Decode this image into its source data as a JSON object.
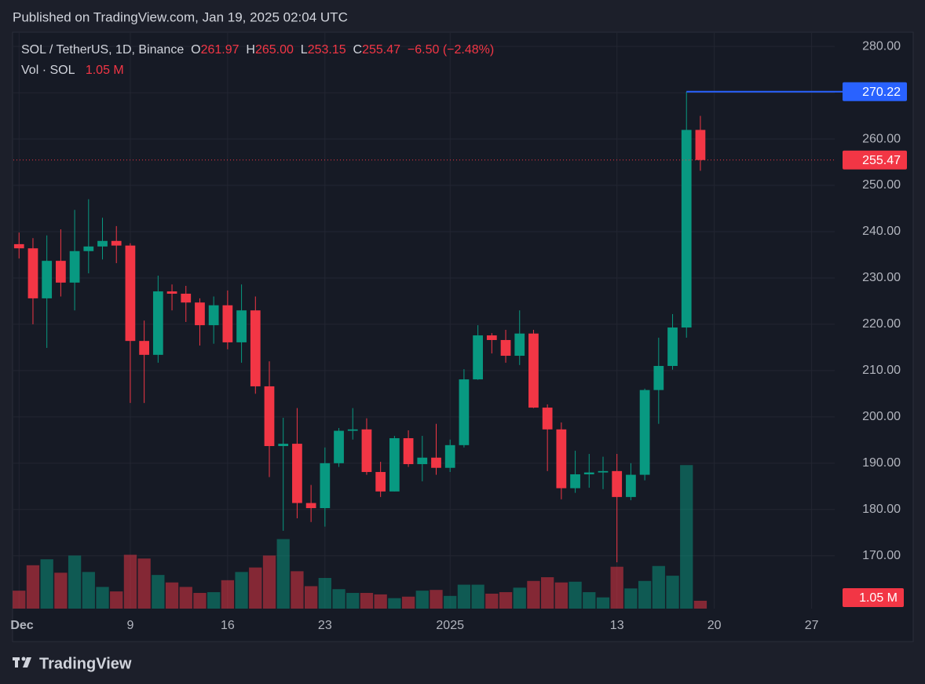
{
  "page": {
    "published": "Published on TradingView.com, Jan 19, 2025 02:04 UTC",
    "brand": "TradingView"
  },
  "chart_data": {
    "type": "candlestick",
    "legend": {
      "symbol": "SOL / TetherUS, 1D, Binance",
      "ohlc": [
        {
          "key": "O",
          "value": "261.97"
        },
        {
          "key": "H",
          "value": "265.00"
        },
        {
          "key": "L",
          "value": "253.15"
        },
        {
          "key": "C",
          "value": "255.47"
        }
      ],
      "change": "−6.50 (−2.48%)"
    },
    "up_color": "#089981",
    "down_color": "#f23645",
    "xlim": [
      -0.41,
      58.66
    ],
    "xticks": [
      {
        "value": 0,
        "label": "Dec"
      },
      {
        "value": 8,
        "label": "9"
      },
      {
        "value": 15,
        "label": "16"
      },
      {
        "value": 22,
        "label": "23"
      },
      {
        "value": 31,
        "label": "2025"
      },
      {
        "value": 43,
        "label": "13"
      },
      {
        "value": 50,
        "label": "20"
      },
      {
        "value": 57,
        "label": "27"
      }
    ],
    "ylim": [
      158.6,
      282.9
    ],
    "yticks": [
      {
        "value": 170,
        "label": "170.00"
      },
      {
        "value": 180,
        "label": "180.00"
      },
      {
        "value": 190,
        "label": "190.00"
      },
      {
        "value": 200,
        "label": "200.00"
      },
      {
        "value": 210,
        "label": "210.00"
      },
      {
        "value": 220,
        "label": "220.00"
      },
      {
        "value": 230,
        "label": "230.00"
      },
      {
        "value": 240,
        "label": "240.00"
      },
      {
        "value": 250,
        "label": "250.00"
      },
      {
        "value": 260,
        "label": "260.00"
      },
      {
        "value": 270,
        "label": "270.00"
      },
      {
        "value": 280,
        "label": "280.00"
      }
    ],
    "grid": true,
    "open": [
      237.3,
      236.4,
      225.6,
      233.7,
      229.0,
      235.8,
      236.8,
      238.0,
      237.0,
      216.4,
      213.4,
      227.1,
      226.6,
      224.7,
      219.8,
      224.1,
      216.1,
      223.0,
      206.6,
      193.7,
      194.2,
      181.4,
      180.3,
      190.0,
      197.0,
      197.3,
      188.1,
      183.9,
      195.4,
      189.8,
      191.2,
      189.0,
      193.9,
      208.1,
      217.6,
      216.6,
      213.2,
      218.0,
      202.0,
      197.3,
      184.6,
      187.6,
      188.0,
      188.3,
      182.7,
      187.5,
      205.8,
      211.0,
      219.3,
      261.97
    ],
    "high": [
      239.8,
      238.6,
      239.2,
      240.5,
      244.7,
      247.0,
      243.0,
      241.2,
      237.5,
      220.8,
      230.5,
      228.6,
      228.3,
      225.6,
      226.0,
      227.3,
      228.6,
      226.0,
      212.0,
      199.8,
      201.9,
      185.3,
      193.4,
      197.6,
      201.9,
      199.7,
      190.3,
      195.9,
      197.1,
      195.9,
      198.5,
      195.1,
      210.3,
      219.8,
      218.1,
      218.8,
      223.0,
      218.8,
      202.7,
      198.8,
      192.7,
      192.0,
      191.4,
      192.0,
      190.0,
      206.1,
      217.1,
      222.2,
      270.22,
      265.0
    ],
    "low": [
      234.2,
      220.0,
      214.9,
      226.0,
      223.0,
      231.0,
      234.0,
      233.2,
      203.0,
      203.0,
      211.7,
      223.0,
      220.5,
      215.4,
      215.8,
      214.6,
      211.7,
      205.0,
      187.0,
      175.4,
      178.1,
      177.3,
      176.3,
      189.2,
      195.1,
      187.5,
      182.7,
      183.9,
      189.2,
      186.1,
      187.5,
      188.1,
      193.4,
      208.0,
      213.7,
      211.7,
      211.2,
      201.9,
      188.3,
      182.2,
      183.6,
      184.7,
      184.4,
      168.6,
      182.0,
      186.3,
      198.5,
      210.2,
      217.1,
      253.15
    ],
    "close": [
      236.4,
      225.6,
      233.7,
      229.0,
      235.8,
      236.8,
      238.0,
      237.0,
      216.4,
      213.4,
      227.1,
      226.6,
      224.7,
      219.8,
      224.1,
      216.1,
      223.0,
      206.6,
      193.7,
      194.2,
      181.4,
      180.3,
      190.0,
      197.0,
      197.3,
      188.1,
      183.9,
      195.4,
      189.8,
      191.2,
      189.0,
      193.9,
      208.1,
      217.6,
      216.6,
      213.2,
      218.0,
      202.0,
      197.3,
      184.6,
      187.6,
      188.0,
      188.3,
      182.7,
      187.5,
      205.8,
      211.0,
      219.3,
      261.97,
      255.47
    ],
    "last_price": 255.47,
    "high_marker": {
      "value": 270.22,
      "color": "#2962ff"
    },
    "volume": {
      "name": "Vol · SOL",
      "ylim": [
        0,
        77
      ],
      "last_label": "1.05 M",
      "values": [
        2.4,
        5.8,
        6.6,
        4.8,
        7.1,
        4.9,
        2.9,
        2.3,
        7.2,
        6.7,
        4.5,
        3.5,
        2.9,
        2.1,
        2.2,
        3.8,
        4.9,
        5.5,
        7.1,
        9.3,
        5.0,
        3.0,
        4.1,
        2.6,
        2.1,
        2.1,
        1.9,
        1.4,
        1.6,
        2.4,
        2.5,
        1.7,
        3.2,
        3.2,
        2.0,
        2.2,
        2.8,
        3.7,
        4.2,
        3.5,
        3.6,
        2.2,
        1.5,
        5.6,
        2.7,
        3.7,
        5.7,
        4.4,
        19.2,
        1.05
      ]
    }
  }
}
